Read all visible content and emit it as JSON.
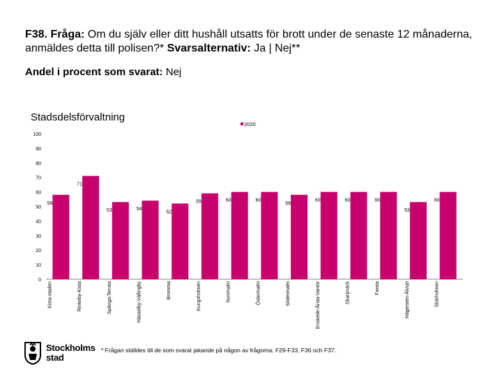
{
  "header": {
    "title_prefix": "F38. Fråga:",
    "title_text": " Om du själv eller ditt hushåll utsatts för brott under de senaste 12 månaderna, anmäldes detta till polisen?*",
    "alt_label": " Svarsalternativ:",
    "alt_text": " Ja | Nej**",
    "subtitle_label": "Andel i procent som svarat:",
    "subtitle_value": " Nej"
  },
  "footnote": "* Frågan ställdes till de som svarat jakande på någon av frågorna: F29-F33, F36 och F37.",
  "logo": {
    "line1": "Stockholms",
    "line2": "stad"
  },
  "colors": {
    "bar": "#c8006e",
    "axis": "#808080"
  },
  "chart_data": {
    "type": "bar",
    "title": "Stadsdelsförvaltning",
    "legend": [
      "2020"
    ],
    "legend_position": "top-right",
    "categories": [
      "Kista-staden",
      "Rinkeby-Kista",
      "Spånga-Tensta",
      "Hässelby-Vällingby",
      "Bromma",
      "Kungsholmen",
      "Norrmalm",
      "Östermalm",
      "Södermalm",
      "Enskede-Årsta-Vantör",
      "Skarpnäck",
      "Farsta",
      "Hägersten-Älvsjö",
      "Skärholmen"
    ],
    "series": [
      {
        "name": "2020",
        "values": [
          58,
          71,
          53,
          54,
          52,
          59,
          60,
          60,
          58,
          60,
          60,
          60,
          53,
          60
        ]
      }
    ],
    "ylim": [
      0,
      100
    ],
    "yticks": [
      0,
      10,
      20,
      30,
      40,
      50,
      60,
      70,
      80,
      90,
      100
    ],
    "xlabel": "",
    "ylabel": ""
  }
}
